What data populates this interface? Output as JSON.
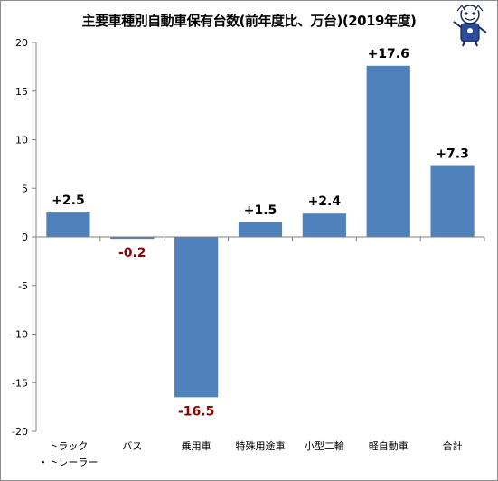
{
  "chart_data": {
    "type": "bar",
    "title": "主要車種別自動車保有台数(前年度比、万台)(2019年度)",
    "categories": [
      [
        "トラック",
        "・トレーラー"
      ],
      [
        "バス"
      ],
      [
        "乗用車"
      ],
      [
        "特殊用途車"
      ],
      [
        "小型二輪"
      ],
      [
        "軽自動車"
      ],
      [
        "合計"
      ]
    ],
    "values": [
      2.5,
      -0.2,
      -16.5,
      1.5,
      2.4,
      17.6,
      7.3
    ],
    "data_labels": [
      "+2.5",
      "-0.2",
      "-16.5",
      "+1.5",
      "+2.4",
      "+17.6",
      "+7.3"
    ],
    "ylim": [
      -20,
      20
    ],
    "yticks": [
      20,
      15,
      10,
      5,
      0,
      -5,
      -10,
      -15,
      -20
    ],
    "grid": false,
    "legend": "none",
    "colors": {
      "bar": "#4f81bd",
      "positive_label": "#000000",
      "negative_label": "#8b0000",
      "axis": "#808080"
    }
  }
}
